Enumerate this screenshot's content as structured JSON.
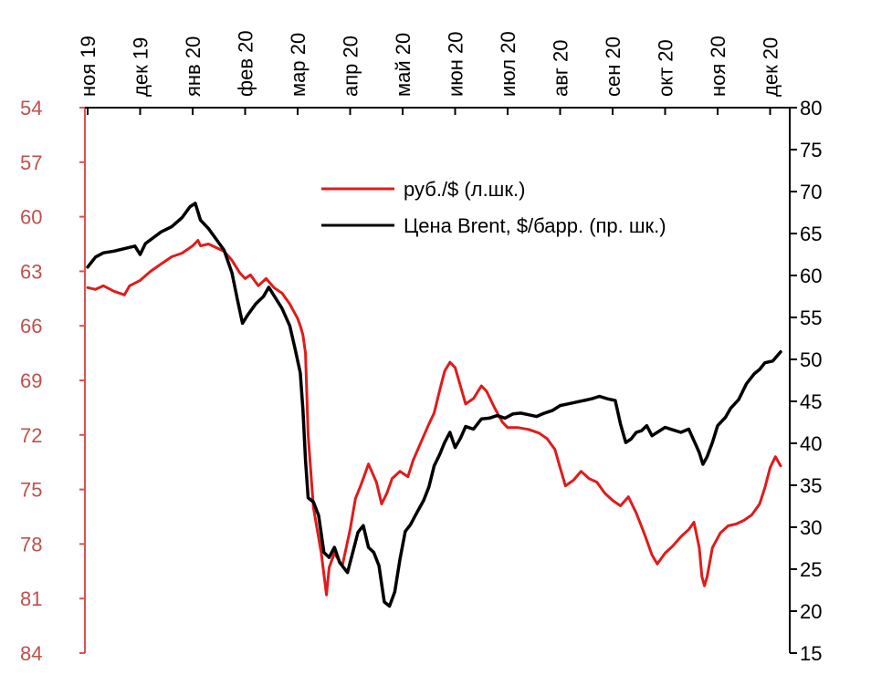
{
  "chart_data": {
    "type": "line",
    "title": "",
    "xlabel": "",
    "x_ticks": [
      "ноя 19",
      "дек 19",
      "янв 20",
      "фев 20",
      "мар 20",
      "апр 20",
      "май 20",
      "июн 20",
      "июл 20",
      "авг 20",
      "сен 20",
      "окт 20",
      "ноя 20",
      "дек 20"
    ],
    "y_left": {
      "ticks": [
        "54",
        "57",
        "60",
        "63",
        "66",
        "69",
        "72",
        "75",
        "78",
        "81",
        "84"
      ],
      "range": [
        54,
        84
      ],
      "inverted": true,
      "color": "#c0504d"
    },
    "y_right": {
      "ticks": [
        "80",
        "75",
        "70",
        "65",
        "60",
        "55",
        "50",
        "45",
        "40",
        "35",
        "30",
        "25",
        "20",
        "15"
      ],
      "range": [
        15,
        80
      ],
      "color": "#000000"
    },
    "grid": false,
    "legend_position": "top-right",
    "series": [
      {
        "name": "руб./$ (л.шк.)",
        "axis": "left",
        "color": "#e01b1b",
        "points": [
          [
            0.0,
            63.9
          ],
          [
            0.15,
            64.0
          ],
          [
            0.3,
            63.8
          ],
          [
            0.5,
            64.1
          ],
          [
            0.7,
            64.3
          ],
          [
            0.8,
            63.8
          ],
          [
            1.0,
            63.5
          ],
          [
            1.2,
            63.0
          ],
          [
            1.4,
            62.6
          ],
          [
            1.6,
            62.2
          ],
          [
            1.8,
            62.0
          ],
          [
            2.0,
            61.6
          ],
          [
            2.1,
            61.3
          ],
          [
            2.15,
            61.6
          ],
          [
            2.3,
            61.5
          ],
          [
            2.45,
            61.7
          ],
          [
            2.6,
            61.9
          ],
          [
            2.75,
            62.4
          ],
          [
            2.9,
            63.1
          ],
          [
            3.0,
            63.4
          ],
          [
            3.1,
            63.2
          ],
          [
            3.25,
            63.8
          ],
          [
            3.4,
            63.4
          ],
          [
            3.55,
            63.9
          ],
          [
            3.7,
            64.2
          ],
          [
            3.85,
            64.8
          ],
          [
            4.0,
            65.6
          ],
          [
            4.05,
            66.0
          ],
          [
            4.1,
            66.5
          ],
          [
            4.15,
            67.5
          ],
          [
            4.2,
            72.0
          ],
          [
            4.3,
            76.0
          ],
          [
            4.45,
            78.5
          ],
          [
            4.55,
            80.8
          ],
          [
            4.6,
            79.3
          ],
          [
            4.7,
            78.5
          ],
          [
            4.85,
            79.2
          ],
          [
            5.0,
            77.2
          ],
          [
            5.1,
            75.5
          ],
          [
            5.2,
            74.8
          ],
          [
            5.35,
            73.6
          ],
          [
            5.5,
            74.6
          ],
          [
            5.6,
            75.8
          ],
          [
            5.7,
            75.2
          ],
          [
            5.8,
            74.4
          ],
          [
            5.95,
            74.0
          ],
          [
            6.1,
            74.3
          ],
          [
            6.2,
            73.4
          ],
          [
            6.35,
            72.4
          ],
          [
            6.5,
            71.4
          ],
          [
            6.6,
            70.8
          ],
          [
            6.7,
            69.6
          ],
          [
            6.8,
            68.5
          ],
          [
            6.9,
            68.0
          ],
          [
            7.0,
            68.3
          ],
          [
            7.1,
            69.3
          ],
          [
            7.2,
            70.3
          ],
          [
            7.35,
            70.0
          ],
          [
            7.5,
            69.3
          ],
          [
            7.6,
            69.6
          ],
          [
            7.75,
            70.5
          ],
          [
            7.9,
            71.3
          ],
          [
            8.0,
            71.6
          ],
          [
            8.2,
            71.6
          ],
          [
            8.4,
            71.7
          ],
          [
            8.6,
            71.9
          ],
          [
            8.75,
            72.2
          ],
          [
            8.9,
            72.8
          ],
          [
            9.0,
            73.8
          ],
          [
            9.1,
            74.8
          ],
          [
            9.25,
            74.5
          ],
          [
            9.4,
            74.0
          ],
          [
            9.55,
            74.4
          ],
          [
            9.7,
            74.6
          ],
          [
            9.85,
            75.2
          ],
          [
            10.0,
            75.6
          ],
          [
            10.15,
            75.9
          ],
          [
            10.3,
            75.4
          ],
          [
            10.45,
            76.3
          ],
          [
            10.6,
            77.4
          ],
          [
            10.75,
            78.6
          ],
          [
            10.85,
            79.1
          ],
          [
            11.0,
            78.5
          ],
          [
            11.15,
            78.1
          ],
          [
            11.3,
            77.6
          ],
          [
            11.45,
            77.2
          ],
          [
            11.55,
            76.8
          ],
          [
            11.65,
            78.2
          ],
          [
            11.7,
            79.8
          ],
          [
            11.75,
            80.3
          ],
          [
            11.8,
            79.8
          ],
          [
            11.9,
            78.2
          ],
          [
            12.05,
            77.4
          ],
          [
            12.2,
            77.0
          ],
          [
            12.35,
            76.9
          ],
          [
            12.5,
            76.7
          ],
          [
            12.65,
            76.4
          ],
          [
            12.8,
            75.8
          ],
          [
            12.9,
            74.9
          ],
          [
            13.0,
            73.8
          ],
          [
            13.1,
            73.2
          ],
          [
            13.2,
            73.7
          ]
        ]
      },
      {
        "name": "Цена Brent, $/барр. (пр. шк.)",
        "axis": "right",
        "color": "#000000",
        "points": [
          [
            0.0,
            61.0
          ],
          [
            0.15,
            62.2
          ],
          [
            0.3,
            62.7
          ],
          [
            0.5,
            62.9
          ],
          [
            0.7,
            63.2
          ],
          [
            0.9,
            63.5
          ],
          [
            1.0,
            62.5
          ],
          [
            1.1,
            63.8
          ],
          [
            1.25,
            64.5
          ],
          [
            1.4,
            65.2
          ],
          [
            1.6,
            65.8
          ],
          [
            1.8,
            66.9
          ],
          [
            1.95,
            68.2
          ],
          [
            2.05,
            68.6
          ],
          [
            2.15,
            66.6
          ],
          [
            2.3,
            65.6
          ],
          [
            2.45,
            64.3
          ],
          [
            2.6,
            63.0
          ],
          [
            2.75,
            60.3
          ],
          [
            2.85,
            57.2
          ],
          [
            2.95,
            54.3
          ],
          [
            3.05,
            55.3
          ],
          [
            3.2,
            56.6
          ],
          [
            3.35,
            57.5
          ],
          [
            3.45,
            58.6
          ],
          [
            3.55,
            57.6
          ],
          [
            3.7,
            56.1
          ],
          [
            3.85,
            54.0
          ],
          [
            3.95,
            51.3
          ],
          [
            4.05,
            48.4
          ],
          [
            4.1,
            44.0
          ],
          [
            4.15,
            38.0
          ],
          [
            4.2,
            33.5
          ],
          [
            4.3,
            33.0
          ],
          [
            4.4,
            31.4
          ],
          [
            4.5,
            27.0
          ],
          [
            4.6,
            26.4
          ],
          [
            4.7,
            27.6
          ],
          [
            4.8,
            25.8
          ],
          [
            4.95,
            24.6
          ],
          [
            5.05,
            27.0
          ],
          [
            5.15,
            29.4
          ],
          [
            5.25,
            30.2
          ],
          [
            5.35,
            27.6
          ],
          [
            5.45,
            27.0
          ],
          [
            5.55,
            25.4
          ],
          [
            5.65,
            21.1
          ],
          [
            5.75,
            20.6
          ],
          [
            5.85,
            22.3
          ],
          [
            5.95,
            26.2
          ],
          [
            6.05,
            29.5
          ],
          [
            6.15,
            30.3
          ],
          [
            6.25,
            31.5
          ],
          [
            6.4,
            33.2
          ],
          [
            6.5,
            34.8
          ],
          [
            6.6,
            37.3
          ],
          [
            6.7,
            38.6
          ],
          [
            6.8,
            40.1
          ],
          [
            6.9,
            41.3
          ],
          [
            7.0,
            39.5
          ],
          [
            7.1,
            40.6
          ],
          [
            7.2,
            42.0
          ],
          [
            7.35,
            41.7
          ],
          [
            7.5,
            42.9
          ],
          [
            7.65,
            43.0
          ],
          [
            7.8,
            43.3
          ],
          [
            7.95,
            43.0
          ],
          [
            8.1,
            43.5
          ],
          [
            8.25,
            43.6
          ],
          [
            8.4,
            43.4
          ],
          [
            8.55,
            43.2
          ],
          [
            8.7,
            43.6
          ],
          [
            8.85,
            43.9
          ],
          [
            9.0,
            44.5
          ],
          [
            9.15,
            44.7
          ],
          [
            9.3,
            44.9
          ],
          [
            9.45,
            45.1
          ],
          [
            9.6,
            45.3
          ],
          [
            9.75,
            45.6
          ],
          [
            9.9,
            45.3
          ],
          [
            10.05,
            45.1
          ],
          [
            10.15,
            42.3
          ],
          [
            10.25,
            40.1
          ],
          [
            10.35,
            40.5
          ],
          [
            10.45,
            41.3
          ],
          [
            10.55,
            41.5
          ],
          [
            10.65,
            42.1
          ],
          [
            10.75,
            40.9
          ],
          [
            10.85,
            41.3
          ],
          [
            11.0,
            41.9
          ],
          [
            11.15,
            41.6
          ],
          [
            11.3,
            41.3
          ],
          [
            11.45,
            41.7
          ],
          [
            11.55,
            40.3
          ],
          [
            11.65,
            38.9
          ],
          [
            11.72,
            37.5
          ],
          [
            11.8,
            38.4
          ],
          [
            11.9,
            40.1
          ],
          [
            12.0,
            42.1
          ],
          [
            12.15,
            43.1
          ],
          [
            12.25,
            44.2
          ],
          [
            12.4,
            45.2
          ],
          [
            12.55,
            47.1
          ],
          [
            12.7,
            48.3
          ],
          [
            12.8,
            48.8
          ],
          [
            12.9,
            49.6
          ],
          [
            13.05,
            49.8
          ],
          [
            13.2,
            50.9
          ]
        ]
      }
    ]
  },
  "legend": [
    {
      "label": "руб./$ (л.шк.)",
      "color": "#e01b1b"
    },
    {
      "label": "Цена Brent, $/барр. (пр. шк.)",
      "color": "#000000"
    }
  ]
}
